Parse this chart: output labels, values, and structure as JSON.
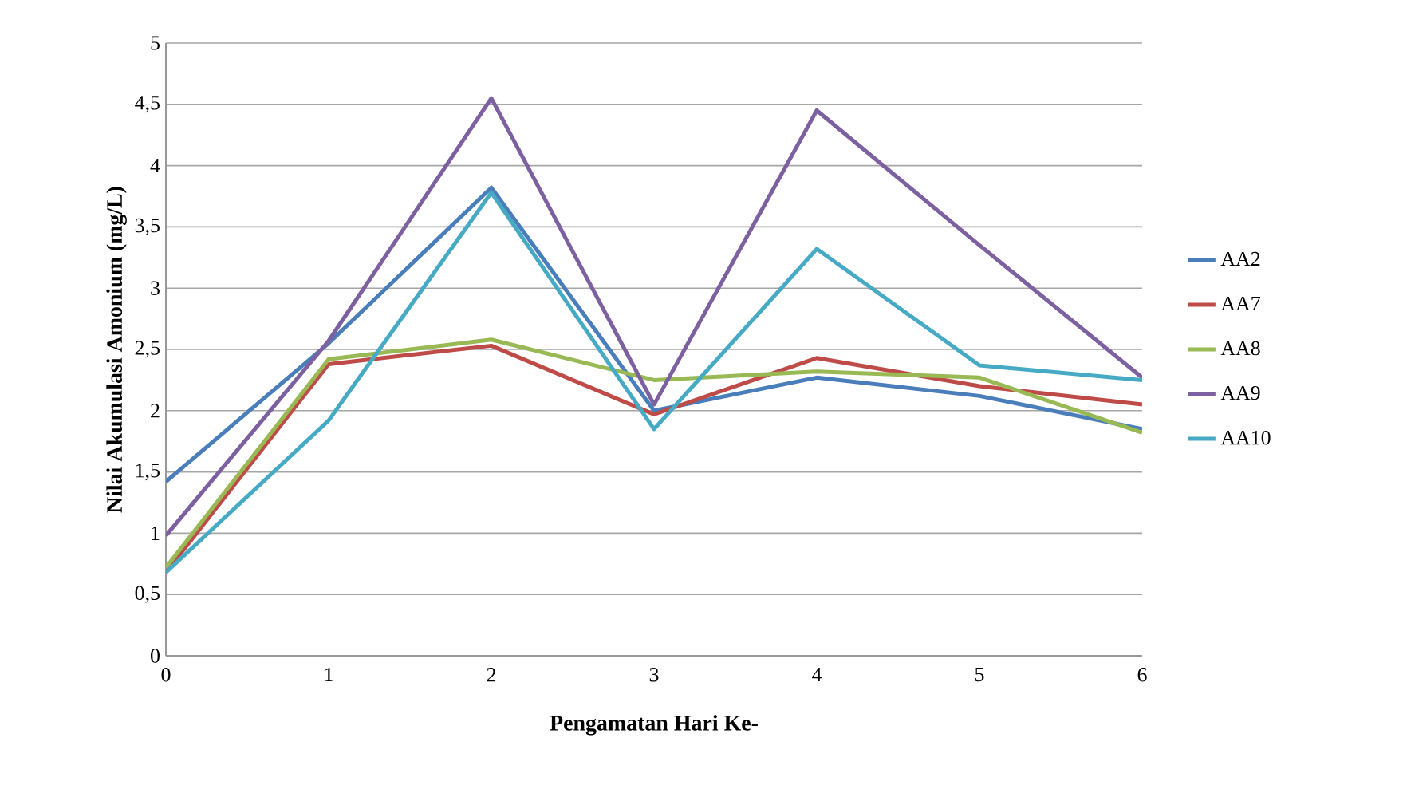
{
  "chart_data": {
    "type": "line",
    "xlabel": "Pengamatan Hari Ke-",
    "ylabel": "Nilai Akumulasi Amonium (mg/L)",
    "x": [
      0,
      1,
      2,
      3,
      4,
      5,
      6
    ],
    "series": [
      {
        "name": "AA2",
        "color": "#4a7ebb",
        "values": [
          1.42,
          2.55,
          3.82,
          2.0,
          2.27,
          2.12,
          1.85
        ]
      },
      {
        "name": "AA7",
        "color": "#be4b48",
        "values": [
          0.68,
          2.38,
          2.53,
          1.97,
          2.43,
          2.2,
          2.05
        ]
      },
      {
        "name": "AA8",
        "color": "#98b954",
        "values": [
          0.72,
          2.42,
          2.58,
          2.25,
          2.32,
          2.27,
          1.82
        ]
      },
      {
        "name": "AA9",
        "color": "#7d60a0",
        "values": [
          0.98,
          2.57,
          4.55,
          2.05,
          4.45,
          3.35,
          2.27
        ]
      },
      {
        "name": "AA10",
        "color": "#46aac5",
        "values": [
          0.68,
          1.92,
          3.78,
          1.85,
          3.32,
          2.37,
          2.25
        ]
      }
    ],
    "xlim": [
      0,
      6
    ],
    "xticks": [
      0,
      1,
      2,
      3,
      4,
      5,
      6
    ],
    "ylim": [
      0,
      5
    ],
    "yticks": [
      0,
      {
        "value": 0.5,
        "label": "0,5"
      },
      1,
      {
        "value": 1.5,
        "label": "1,5"
      },
      2,
      {
        "value": 2.5,
        "label": "2,5"
      },
      3,
      {
        "value": 3.5,
        "label": "3,5"
      },
      4,
      {
        "value": 4.5,
        "label": "4,5"
      },
      5
    ],
    "grid": "y",
    "legend": "right"
  }
}
